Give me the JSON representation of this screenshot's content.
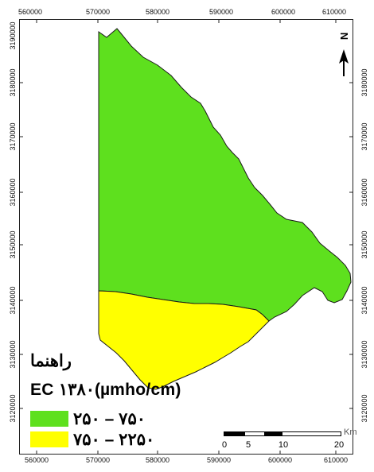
{
  "map": {
    "x_ticks": [
      "560000",
      "570000",
      "580000",
      "590000",
      "600000",
      "610000"
    ],
    "y_ticks": [
      "3190000",
      "3180000",
      "3170000",
      "3160000",
      "3150000",
      "3140000",
      "3130000",
      "3120000"
    ],
    "colors": {
      "low": "#5ee01e",
      "high": "#ffff00",
      "outline": "#1a1a1a"
    },
    "north_label": "N",
    "north_icon": "north-arrow-icon"
  },
  "legend": {
    "title": "راهنما",
    "ec_label": "EC ۱۳۸۰(µmho/cm)",
    "items": [
      {
        "label": "۲۵۰ – ۷۵۰",
        "color": "#5ee01e"
      },
      {
        "label": "۷۵۰ – ۲۲۵۰",
        "color": "#ffff00"
      }
    ]
  },
  "scale_bar": {
    "labels": [
      "0",
      "5",
      "10",
      "20"
    ],
    "unit": "Km"
  }
}
